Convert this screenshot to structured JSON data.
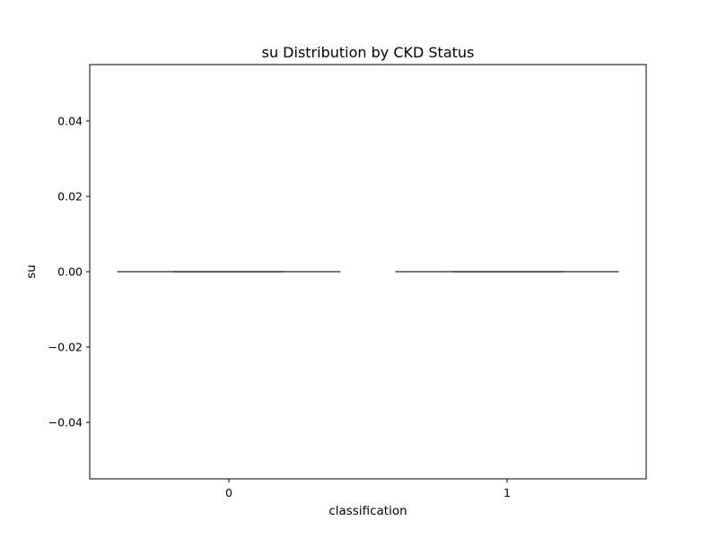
{
  "chart_data": {
    "type": "box",
    "title": "su Distribution by CKD Status",
    "xlabel": "classification",
    "ylabel": "su",
    "categories": [
      "0",
      "1"
    ],
    "boxes": [
      {
        "category": "0",
        "min": 0,
        "q1": 0,
        "median": 0,
        "q3": 0,
        "max": 0
      },
      {
        "category": "1",
        "min": 0,
        "q1": 0,
        "median": 0,
        "q3": 0,
        "max": 0
      }
    ],
    "ylim": [
      -0.055,
      0.055
    ],
    "yticks": [
      -0.04,
      -0.02,
      0.0,
      0.02,
      0.04
    ],
    "ytick_labels": [
      "−0.04",
      "−0.02",
      "0.00",
      "0.02",
      "0.04"
    ],
    "grid": false,
    "colors": {
      "box_line": "#3f3f3f",
      "axis": "#000000"
    }
  }
}
